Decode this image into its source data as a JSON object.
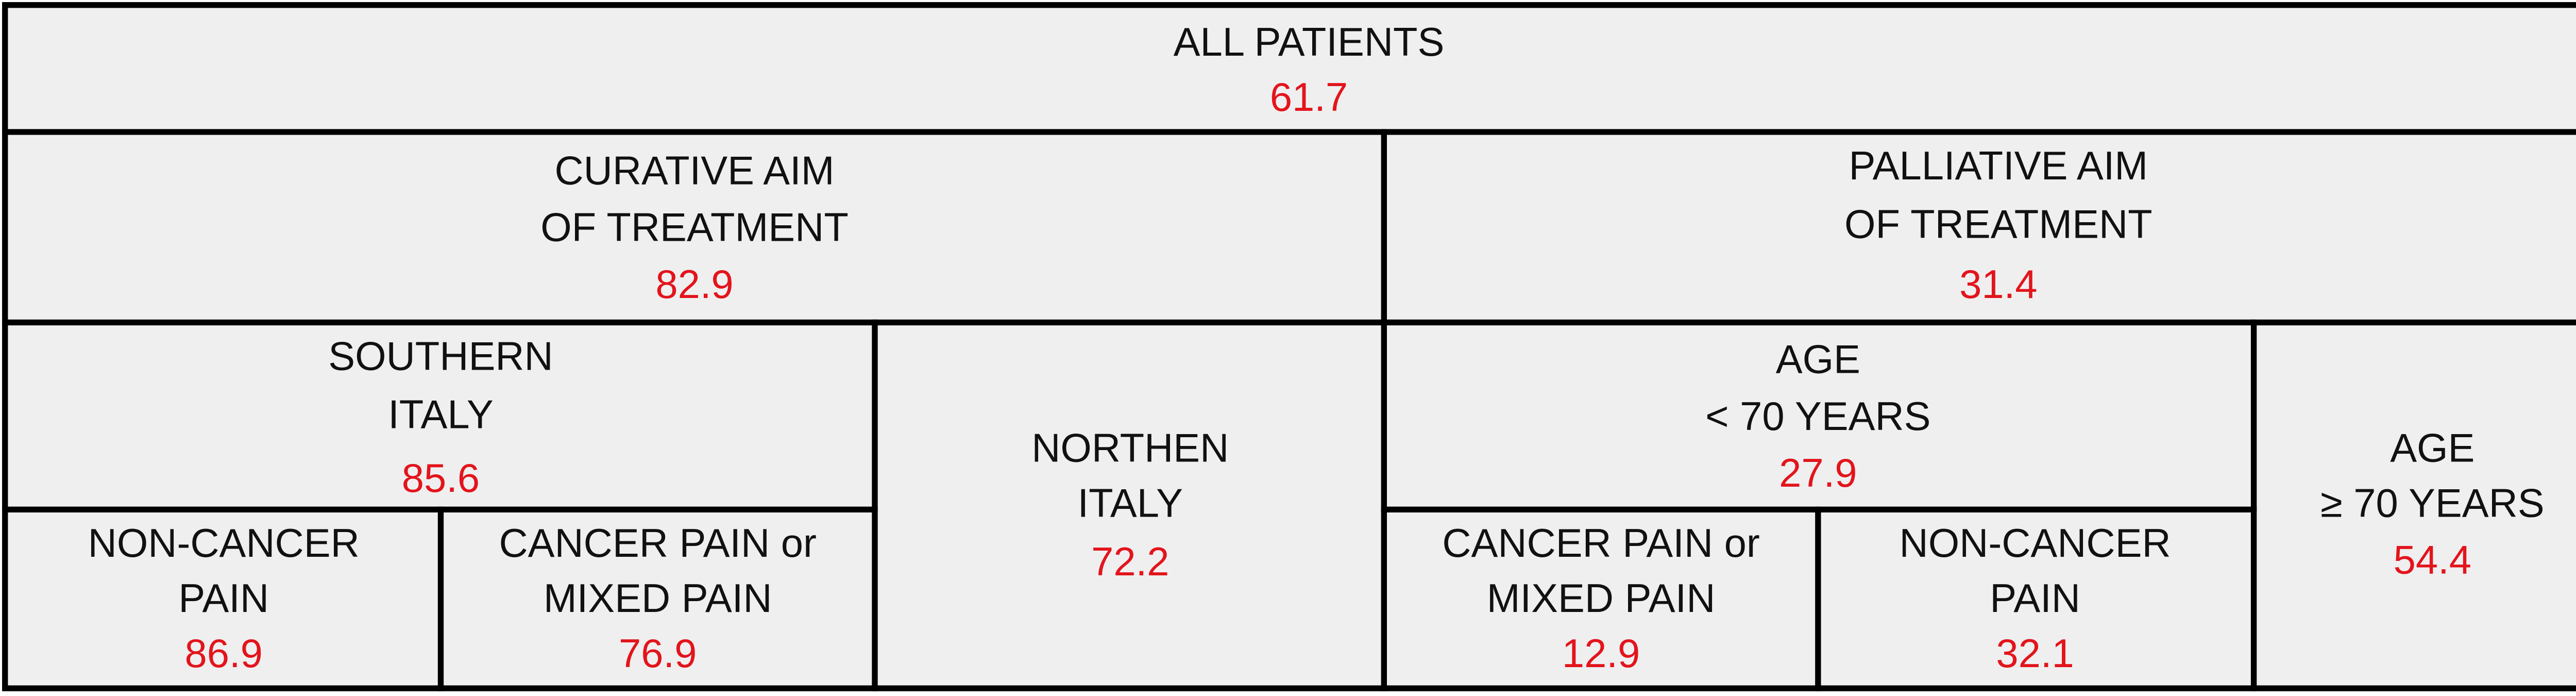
{
  "nodes": [
    {
      "label": [
        "ALL PATIENTS"
      ],
      "value": 61.7
    },
    {
      "label": [
        "CURATIVE AIM",
        "OF TREATMENT"
      ],
      "value": 82.9
    },
    {
      "label": [
        "PALLIATIVE AIM",
        "OF TREATMENT"
      ],
      "value": 31.4
    },
    {
      "label": [
        "SOUTHERN",
        "ITALY"
      ],
      "value": 85.6
    },
    {
      "label": [
        "NORTHEN",
        "ITALY"
      ],
      "value": 72.2
    },
    {
      "label": [
        "AGE",
        "< 70 YEARS"
      ],
      "value": 27.9
    },
    {
      "label": [
        "AGE",
        "≥ 70 YEARS"
      ],
      "value": 54.4
    },
    {
      "label": [
        "NON-CANCER",
        "PAIN"
      ],
      "value": 86.9
    },
    {
      "label": [
        "CANCER PAIN or",
        "MIXED PAIN"
      ],
      "value": 76.9
    },
    {
      "label": [
        "CANCER PAIN or",
        "MIXED PAIN"
      ],
      "value": 12.9
    },
    {
      "label": [
        "NON-CANCER",
        "PAIN"
      ],
      "value": 32.1
    }
  ]
}
